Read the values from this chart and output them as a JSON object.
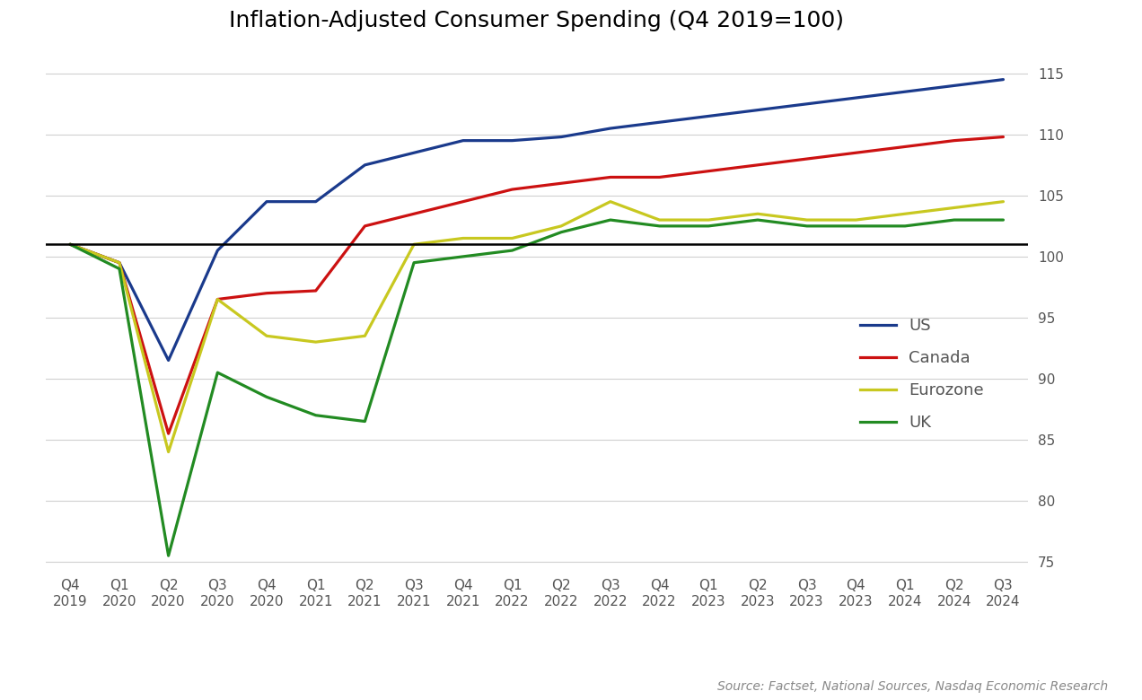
{
  "title": "Inflation-Adjusted Consumer Spending (Q4 2019=100)",
  "source": "Source: Factset, National Sources, Nasdaq Economic Research",
  "x_labels": [
    "Q4\n2019",
    "Q1\n2020",
    "Q2\n2020",
    "Q3\n2020",
    "Q4\n2020",
    "Q1\n2021",
    "Q2\n2021",
    "Q3\n2021",
    "Q4\n2021",
    "Q1\n2022",
    "Q2\n2022",
    "Q3\n2022",
    "Q4\n2022",
    "Q1\n2023",
    "Q2\n2023",
    "Q3\n2023",
    "Q4\n2023",
    "Q1\n2024",
    "Q2\n2024",
    "Q3\n2024"
  ],
  "series": {
    "US": {
      "color": "#1a3a8c",
      "values": [
        101,
        99.5,
        91.5,
        100.5,
        104.5,
        104.5,
        107.5,
        108.5,
        109.5,
        109.5,
        109.8,
        110.5,
        111.0,
        111.5,
        112.0,
        112.5,
        113.0,
        113.5,
        114.0,
        114.5
      ]
    },
    "Canada": {
      "color": "#cc1111",
      "values": [
        101,
        99.5,
        85.5,
        96.5,
        97.0,
        97.2,
        102.5,
        103.5,
        104.5,
        105.5,
        106.0,
        106.5,
        106.5,
        107.0,
        107.5,
        108.0,
        108.5,
        109.0,
        109.5,
        109.8
      ]
    },
    "Eurozone": {
      "color": "#c8c820",
      "values": [
        101,
        99.5,
        84.0,
        96.5,
        93.5,
        93.0,
        93.5,
        101.0,
        101.5,
        101.5,
        102.5,
        104.5,
        103.0,
        103.0,
        103.5,
        103.0,
        103.0,
        103.5,
        104.0,
        104.5
      ]
    },
    "UK": {
      "color": "#228B22",
      "values": [
        101,
        99.0,
        75.5,
        90.5,
        88.5,
        87.0,
        86.5,
        99.5,
        100.0,
        100.5,
        102.0,
        103.0,
        102.5,
        102.5,
        103.0,
        102.5,
        102.5,
        102.5,
        103.0,
        103.0
      ]
    }
  },
  "ylim": [
    74,
    117
  ],
  "yticks": [
    75,
    80,
    85,
    90,
    95,
    100,
    105,
    110,
    115
  ],
  "hline_y": 101,
  "background_color": "#ffffff",
  "grid_color": "#d0d0d0",
  "title_fontsize": 18,
  "legend_fontsize": 13,
  "tick_fontsize": 11,
  "source_fontsize": 10,
  "linewidth": 2.3
}
